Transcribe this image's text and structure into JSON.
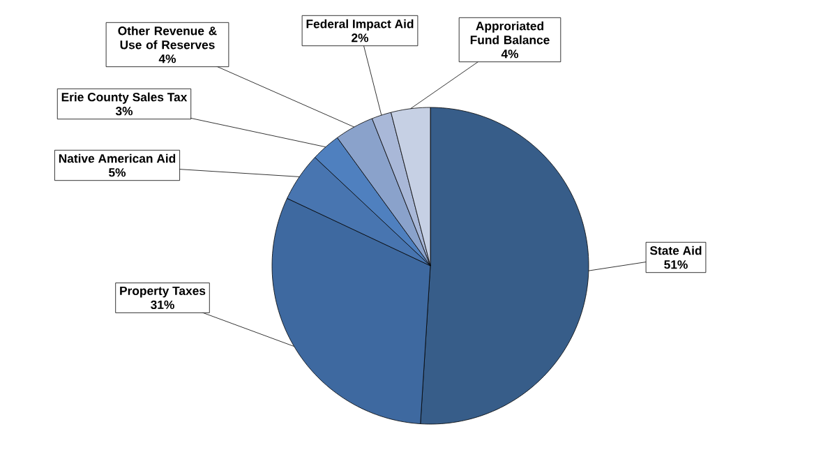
{
  "chart_data": {
    "type": "pie",
    "categories": [
      "State Aid",
      "Property Taxes",
      "Native American Aid",
      "Erie County Sales Tax",
      "Other Revenue & Use of Reserves",
      "Federal Impact Aid",
      "Approriated Fund Balance"
    ],
    "values": [
      51,
      31,
      5,
      3,
      4,
      2,
      4
    ],
    "colors": [
      "#375d89",
      "#3e69a0",
      "#4875b0",
      "#4f80bf",
      "#8aa2cb",
      "#a9b8d8",
      "#c6d0e4"
    ],
    "value_labels": [
      "51%",
      "31%",
      "5%",
      "3%",
      "4%",
      "2%",
      "4%"
    ]
  }
}
